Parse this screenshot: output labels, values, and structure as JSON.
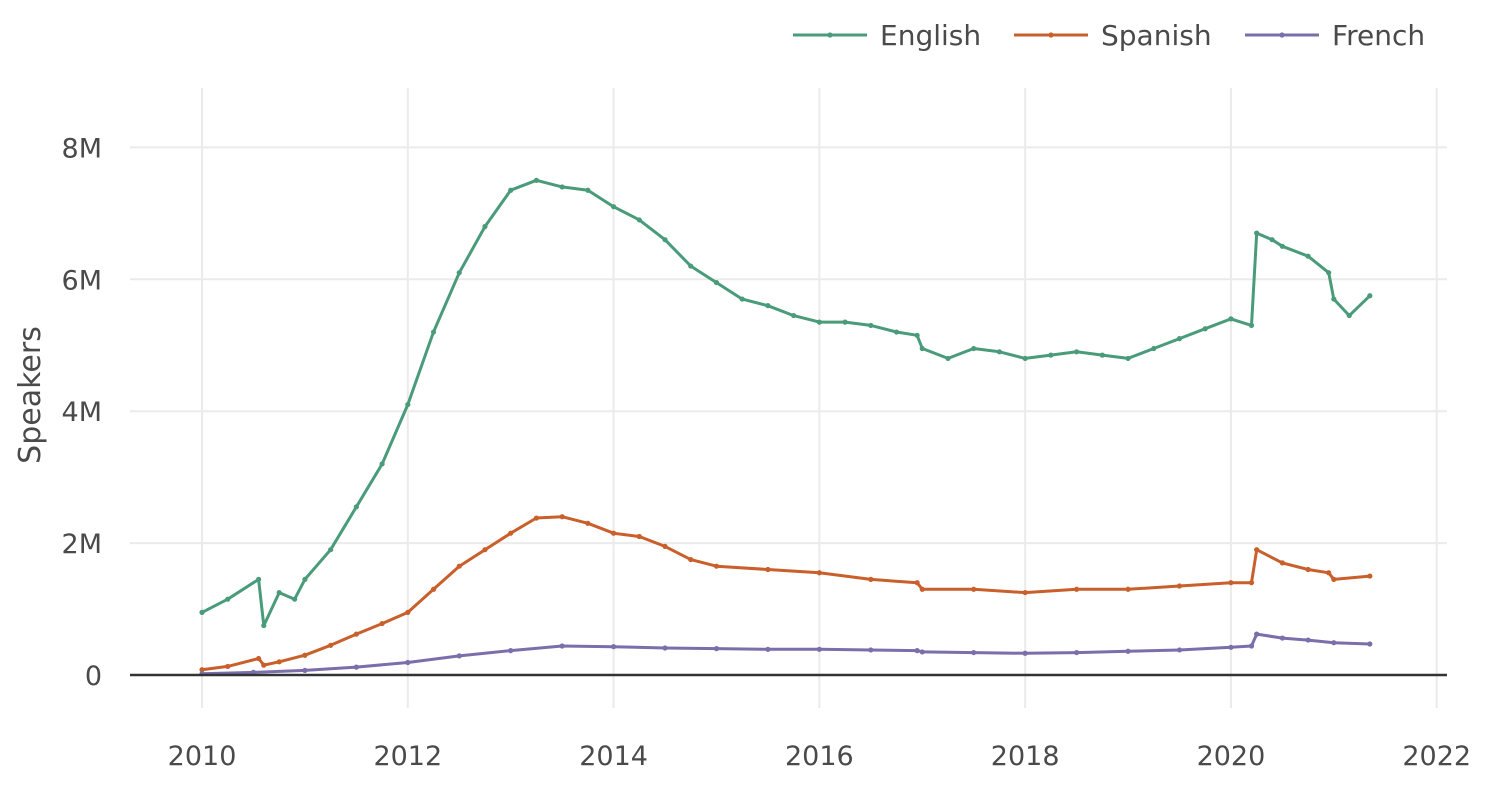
{
  "chart_data": {
    "type": "line",
    "title": "",
    "xlabel": "",
    "ylabel": "Speakers",
    "xlim": [
      2009.3,
      2022.1
    ],
    "ylim": [
      -500000,
      8900000
    ],
    "x_ticks": [
      2010,
      2012,
      2014,
      2016,
      2018,
      2020,
      2022
    ],
    "x_tick_labels": [
      "2010",
      "2012",
      "2014",
      "2016",
      "2018",
      "2020",
      "2022"
    ],
    "y_ticks": [
      0,
      2000000,
      4000000,
      6000000,
      8000000
    ],
    "y_tick_labels": [
      "0",
      "2M",
      "4M",
      "6M",
      "8M"
    ],
    "grid": true,
    "legend_position": "top-right",
    "series": [
      {
        "name": "English",
        "color": "#4a9b7a",
        "x": [
          2010.0,
          2010.25,
          2010.55,
          2010.6,
          2010.75,
          2010.9,
          2011.0,
          2011.25,
          2011.5,
          2011.75,
          2012.0,
          2012.25,
          2012.5,
          2012.75,
          2013.0,
          2013.25,
          2013.5,
          2013.75,
          2014.0,
          2014.25,
          2014.5,
          2014.75,
          2015.0,
          2015.25,
          2015.5,
          2015.75,
          2016.0,
          2016.25,
          2016.5,
          2016.75,
          2016.95,
          2017.0,
          2017.25,
          2017.5,
          2017.75,
          2018.0,
          2018.25,
          2018.5,
          2018.75,
          2019.0,
          2019.25,
          2019.5,
          2019.75,
          2020.0,
          2020.2,
          2020.25,
          2020.4,
          2020.5,
          2020.75,
          2020.95,
          2021.0,
          2021.15,
          2021.35
        ],
        "y": [
          950000,
          1150000,
          1450000,
          750000,
          1250000,
          1150000,
          1450000,
          1900000,
          2550000,
          3200000,
          4100000,
          5200000,
          6100000,
          6800000,
          7350000,
          7500000,
          7400000,
          7350000,
          7100000,
          6900000,
          6600000,
          6200000,
          5950000,
          5700000,
          5600000,
          5450000,
          5350000,
          5350000,
          5300000,
          5200000,
          5150000,
          4950000,
          4800000,
          4950000,
          4900000,
          4800000,
          4850000,
          4900000,
          4850000,
          4800000,
          4950000,
          5100000,
          5250000,
          5400000,
          5300000,
          6700000,
          6600000,
          6500000,
          6350000,
          6100000,
          5700000,
          5450000,
          5750000
        ]
      },
      {
        "name": "Spanish",
        "color": "#c95f2a",
        "x": [
          2010.0,
          2010.25,
          2010.55,
          2010.6,
          2010.75,
          2011.0,
          2011.25,
          2011.5,
          2011.75,
          2012.0,
          2012.25,
          2012.5,
          2012.75,
          2013.0,
          2013.25,
          2013.5,
          2013.75,
          2014.0,
          2014.25,
          2014.5,
          2014.75,
          2015.0,
          2015.5,
          2016.0,
          2016.5,
          2016.95,
          2017.0,
          2017.5,
          2018.0,
          2018.5,
          2019.0,
          2019.5,
          2020.0,
          2020.2,
          2020.25,
          2020.5,
          2020.75,
          2020.95,
          2021.0,
          2021.35
        ],
        "y": [
          80000,
          130000,
          250000,
          150000,
          200000,
          300000,
          450000,
          620000,
          780000,
          950000,
          1300000,
          1650000,
          1900000,
          2150000,
          2380000,
          2400000,
          2300000,
          2150000,
          2100000,
          1950000,
          1750000,
          1650000,
          1600000,
          1550000,
          1450000,
          1400000,
          1300000,
          1300000,
          1250000,
          1300000,
          1300000,
          1350000,
          1400000,
          1400000,
          1900000,
          1700000,
          1600000,
          1550000,
          1450000,
          1500000
        ]
      },
      {
        "name": "French",
        "color": "#7a6eab",
        "x": [
          2010.0,
          2010.5,
          2011.0,
          2011.5,
          2012.0,
          2012.5,
          2013.0,
          2013.5,
          2014.0,
          2014.5,
          2015.0,
          2015.5,
          2016.0,
          2016.5,
          2016.95,
          2017.0,
          2017.5,
          2018.0,
          2018.5,
          2019.0,
          2019.5,
          2020.0,
          2020.2,
          2020.25,
          2020.5,
          2020.75,
          2021.0,
          2021.35
        ],
        "y": [
          20000,
          40000,
          70000,
          120000,
          190000,
          290000,
          370000,
          440000,
          430000,
          410000,
          400000,
          390000,
          390000,
          380000,
          370000,
          350000,
          340000,
          330000,
          340000,
          360000,
          380000,
          420000,
          440000,
          620000,
          560000,
          530000,
          490000,
          470000
        ]
      }
    ]
  }
}
